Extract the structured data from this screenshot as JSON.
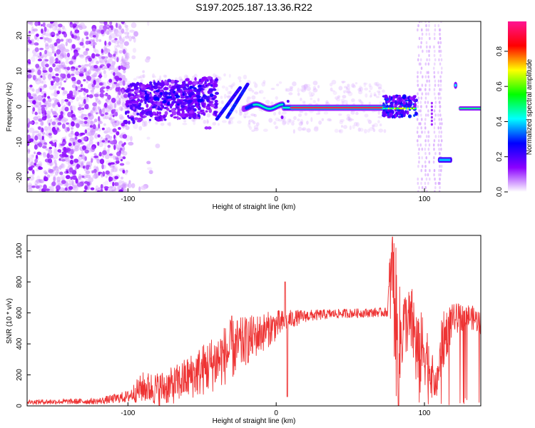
{
  "title": "S197.2025.187.13.36.R22",
  "chart_data": [
    {
      "type": "heatmap",
      "xlabel": "Height of straight line (km)",
      "ylabel": "Frequency (Hz)",
      "xlim": [
        -168,
        138
      ],
      "ylim": [
        -24,
        24
      ],
      "xticks": [
        -100,
        0,
        100
      ],
      "yticks": [
        20,
        10,
        0,
        -10,
        -20
      ],
      "colorbar": {
        "label": "Normalized spectral amplitude",
        "range": [
          0,
          0.97
        ],
        "ticks": [
          "0.0",
          "0.2",
          "0.4",
          "0.6",
          "0.8"
        ],
        "colors": [
          "#ffffff",
          "#8b00ff",
          "#0000ff",
          "#00ffff",
          "#00ff00",
          "#ffff00",
          "#ff0000",
          "#ff1493"
        ]
      },
      "features": [
        {
          "name": "noise",
          "x": [
            -168,
            -100
          ],
          "freq": [
            -24,
            24
          ],
          "amp": 0.1
        },
        {
          "name": "scatter",
          "x": [
            -100,
            -40
          ],
          "freq": [
            -5,
            7
          ],
          "amp": 0.2
        },
        {
          "name": "ridge",
          "x": [
            -40,
            -20
          ],
          "freq": [
            -4,
            6
          ],
          "amp": 0.25
        },
        {
          "name": "line",
          "x": [
            -20,
            72
          ],
          "freq": [
            -1,
            1
          ],
          "amp": 0.9
        },
        {
          "name": "patch",
          "x": [
            72,
            95
          ],
          "freq": [
            -3,
            3
          ],
          "amp": 0.3
        },
        {
          "name": "band",
          "x": [
            110,
            118
          ],
          "freq": [
            -16,
            -14
          ],
          "amp": 0.35
        },
        {
          "name": "spot",
          "x": [
            120,
            122
          ],
          "freq": [
            5,
            7
          ],
          "amp": 0.4
        },
        {
          "name": "line-end",
          "x": [
            124,
            138
          ],
          "freq": [
            -1,
            1
          ],
          "amp": 0.5
        }
      ]
    },
    {
      "type": "line",
      "xlabel": "Height of straight line (km)",
      "ylabel": "SNR (10 * v/v)",
      "xlim": [
        -168,
        138
      ],
      "ylim": [
        0,
        1100
      ],
      "xticks": [
        -100,
        0,
        100
      ],
      "yticks": [
        0,
        200,
        400,
        600,
        800,
        1000
      ],
      "color": "#ee3333",
      "envelope": [
        [
          -168,
          25,
          15
        ],
        [
          -120,
          30,
          20
        ],
        [
          -100,
          60,
          40
        ],
        [
          -90,
          120,
          100
        ],
        [
          -80,
          110,
          110
        ],
        [
          -70,
          130,
          120
        ],
        [
          -60,
          180,
          140
        ],
        [
          -50,
          230,
          170
        ],
        [
          -40,
          290,
          190
        ],
        [
          -30,
          360,
          200
        ],
        [
          -20,
          420,
          160
        ],
        [
          -10,
          470,
          130
        ],
        [
          0,
          520,
          100
        ],
        [
          10,
          560,
          60
        ],
        [
          20,
          580,
          40
        ],
        [
          40,
          595,
          30
        ],
        [
          60,
          600,
          30
        ],
        [
          75,
          605,
          30
        ],
        [
          77,
          800,
          300
        ],
        [
          80,
          700,
          450
        ],
        [
          82,
          300,
          500
        ],
        [
          86,
          550,
          200
        ],
        [
          92,
          520,
          250
        ],
        [
          96,
          300,
          300
        ],
        [
          100,
          380,
          250
        ],
        [
          105,
          200,
          150
        ],
        [
          108,
          120,
          80
        ],
        [
          112,
          400,
          200
        ],
        [
          116,
          500,
          150
        ],
        [
          120,
          560,
          100
        ],
        [
          130,
          580,
          80
        ],
        [
          138,
          540,
          80
        ]
      ]
    }
  ]
}
